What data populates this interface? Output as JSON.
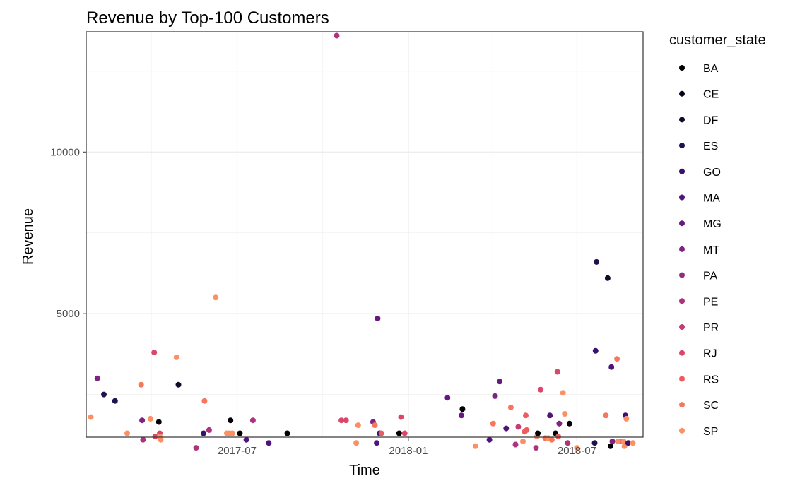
{
  "chart_data": {
    "type": "scatter",
    "title": "Revenue by Top-100 Customers",
    "xlabel": "Time",
    "ylabel": "Revenue",
    "x_ticks": [
      "2017-07",
      "2018-01",
      "2018-07"
    ],
    "y_ticks": [
      5000,
      10000
    ],
    "xlim": [
      "2017-01-20",
      "2018-09-10"
    ],
    "ylim": [
      1180,
      13720
    ],
    "grid": true,
    "legend": {
      "title": "customer_state",
      "placement": "right",
      "entries": [
        {
          "name": "BA",
          "color": "#000004"
        },
        {
          "name": "CE",
          "color": "#040418"
        },
        {
          "name": "DF",
          "color": "#100b2d"
        },
        {
          "name": "ES",
          "color": "#221150"
        },
        {
          "name": "GO",
          "color": "#38116e"
        },
        {
          "name": "MA",
          "color": "#50127b"
        },
        {
          "name": "MG",
          "color": "#661a80"
        },
        {
          "name": "MT",
          "color": "#7d2382"
        },
        {
          "name": "PA",
          "color": "#932b80"
        },
        {
          "name": "PE",
          "color": "#ad347c"
        },
        {
          "name": "PR",
          "color": "#c43c75"
        },
        {
          "name": "RJ",
          "color": "#db476a"
        },
        {
          "name": "RS",
          "color": "#ee5b5e"
        },
        {
          "name": "SC",
          "color": "#f8765c"
        },
        {
          "name": "SP",
          "color": "#fc9065"
        }
      ]
    },
    "points": [
      {
        "x": "2017-01-25",
        "y": 1800,
        "state": "SP"
      },
      {
        "x": "2017-02-01",
        "y": 3000,
        "state": "MT"
      },
      {
        "x": "2017-02-08",
        "y": 2500,
        "state": "ES"
      },
      {
        "x": "2017-02-20",
        "y": 2300,
        "state": "ES"
      },
      {
        "x": "2017-03-05",
        "y": 1300,
        "state": "SP"
      },
      {
        "x": "2017-03-20",
        "y": 2800,
        "state": "SC"
      },
      {
        "x": "2017-03-21",
        "y": 1700,
        "state": "MT"
      },
      {
        "x": "2017-03-22",
        "y": 1100,
        "state": "PE"
      },
      {
        "x": "2017-03-30",
        "y": 1750,
        "state": "SP"
      },
      {
        "x": "2017-04-03",
        "y": 3800,
        "state": "RJ"
      },
      {
        "x": "2017-04-04",
        "y": 1200,
        "state": "RJ"
      },
      {
        "x": "2017-04-08",
        "y": 1650,
        "state": "BA"
      },
      {
        "x": "2017-04-09",
        "y": 1300,
        "state": "RJ"
      },
      {
        "x": "2017-04-09",
        "y": 1200,
        "state": "SP"
      },
      {
        "x": "2017-04-10",
        "y": 1100,
        "state": "SP"
      },
      {
        "x": "2017-04-27",
        "y": 3650,
        "state": "SP"
      },
      {
        "x": "2017-04-29",
        "y": 2800,
        "state": "DF"
      },
      {
        "x": "2017-05-18",
        "y": 850,
        "state": "PE"
      },
      {
        "x": "2017-05-26",
        "y": 1300,
        "state": "GO"
      },
      {
        "x": "2017-05-27",
        "y": 2300,
        "state": "SC"
      },
      {
        "x": "2017-06-01",
        "y": 1400,
        "state": "PE"
      },
      {
        "x": "2017-06-08",
        "y": 5500,
        "state": "SP"
      },
      {
        "x": "2017-06-20",
        "y": 1300,
        "state": "SP"
      },
      {
        "x": "2017-06-23",
        "y": 1300,
        "state": "SP"
      },
      {
        "x": "2017-06-24",
        "y": 1700,
        "state": "BA"
      },
      {
        "x": "2017-06-26",
        "y": 1300,
        "state": "SP"
      },
      {
        "x": "2017-07-04",
        "y": 1300,
        "state": "BA"
      },
      {
        "x": "2017-07-11",
        "y": 1100,
        "state": "MA"
      },
      {
        "x": "2017-07-18",
        "y": 1700,
        "state": "PE"
      },
      {
        "x": "2017-08-04",
        "y": 1000,
        "state": "MA"
      },
      {
        "x": "2017-08-24",
        "y": 1300,
        "state": "BA"
      },
      {
        "x": "2017-10-16",
        "y": 13600,
        "state": "PE"
      },
      {
        "x": "2017-10-21",
        "y": 1700,
        "state": "RJ"
      },
      {
        "x": "2017-10-26",
        "y": 1700,
        "state": "RJ"
      },
      {
        "x": "2017-11-06",
        "y": 1000,
        "state": "SP"
      },
      {
        "x": "2017-11-08",
        "y": 1550,
        "state": "SP"
      },
      {
        "x": "2017-11-24",
        "y": 1650,
        "state": "MT"
      },
      {
        "x": "2017-11-26",
        "y": 1550,
        "state": "SC"
      },
      {
        "x": "2017-11-28",
        "y": 1000,
        "state": "MA"
      },
      {
        "x": "2017-11-29",
        "y": 4850,
        "state": "MG"
      },
      {
        "x": "2017-12-01",
        "y": 1300,
        "state": "GO"
      },
      {
        "x": "2017-12-03",
        "y": 1300,
        "state": "RS"
      },
      {
        "x": "2017-12-22",
        "y": 1300,
        "state": "BA"
      },
      {
        "x": "2017-12-24",
        "y": 1800,
        "state": "RJ"
      },
      {
        "x": "2017-12-28",
        "y": 1300,
        "state": "RJ"
      },
      {
        "x": "2018-02-12",
        "y": 2400,
        "state": "MG"
      },
      {
        "x": "2018-02-27",
        "y": 1850,
        "state": "MG"
      },
      {
        "x": "2018-02-28",
        "y": 2050,
        "state": "BA"
      },
      {
        "x": "2018-03-14",
        "y": 900,
        "state": "SP"
      },
      {
        "x": "2018-03-29",
        "y": 1100,
        "state": "MA"
      },
      {
        "x": "2018-04-02",
        "y": 1600,
        "state": "SC"
      },
      {
        "x": "2018-04-04",
        "y": 2450,
        "state": "MT"
      },
      {
        "x": "2018-04-09",
        "y": 2900,
        "state": "MG"
      },
      {
        "x": "2018-04-16",
        "y": 1450,
        "state": "MA"
      },
      {
        "x": "2018-04-21",
        "y": 2100,
        "state": "SC"
      },
      {
        "x": "2018-04-26",
        "y": 950,
        "state": "PE"
      },
      {
        "x": "2018-04-29",
        "y": 1500,
        "state": "PR"
      },
      {
        "x": "2018-05-04",
        "y": 1050,
        "state": "SP"
      },
      {
        "x": "2018-05-06",
        "y": 1350,
        "state": "RS"
      },
      {
        "x": "2018-05-07",
        "y": 1850,
        "state": "RS"
      },
      {
        "x": "2018-05-08",
        "y": 1400,
        "state": "RS"
      },
      {
        "x": "2018-05-18",
        "y": 850,
        "state": "PE"
      },
      {
        "x": "2018-05-19",
        "y": 1200,
        "state": "SP"
      },
      {
        "x": "2018-05-20",
        "y": 1300,
        "state": "BA"
      },
      {
        "x": "2018-05-23",
        "y": 2650,
        "state": "RJ"
      },
      {
        "x": "2018-05-28",
        "y": 1150,
        "state": "SC"
      },
      {
        "x": "2018-05-31",
        "y": 1150,
        "state": "SP"
      },
      {
        "x": "2018-06-02",
        "y": 1850,
        "state": "MA"
      },
      {
        "x": "2018-06-04",
        "y": 1100,
        "state": "SC"
      },
      {
        "x": "2018-06-08",
        "y": 1300,
        "state": "BA"
      },
      {
        "x": "2018-06-10",
        "y": 3200,
        "state": "RJ"
      },
      {
        "x": "2018-06-11",
        "y": 1200,
        "state": "RS"
      },
      {
        "x": "2018-06-12",
        "y": 1600,
        "state": "MT"
      },
      {
        "x": "2018-06-16",
        "y": 2550,
        "state": "SP"
      },
      {
        "x": "2018-06-18",
        "y": 1900,
        "state": "SP"
      },
      {
        "x": "2018-06-21",
        "y": 1000,
        "state": "PE"
      },
      {
        "x": "2018-06-23",
        "y": 1600,
        "state": "BA"
      },
      {
        "x": "2018-07-01",
        "y": 850,
        "state": "SP"
      },
      {
        "x": "2018-07-20",
        "y": 1000,
        "state": "ES"
      },
      {
        "x": "2018-07-21",
        "y": 3850,
        "state": "GO"
      },
      {
        "x": "2018-07-22",
        "y": 6600,
        "state": "ES"
      },
      {
        "x": "2018-08-01",
        "y": 1850,
        "state": "SC"
      },
      {
        "x": "2018-08-03",
        "y": 6100,
        "state": "DF"
      },
      {
        "x": "2018-08-06",
        "y": 900,
        "state": "BA"
      },
      {
        "x": "2018-08-07",
        "y": 3350,
        "state": "MA"
      },
      {
        "x": "2018-08-08",
        "y": 1050,
        "state": "MT"
      },
      {
        "x": "2018-08-13",
        "y": 3600,
        "state": "SC"
      },
      {
        "x": "2018-08-14",
        "y": 1050,
        "state": "SP"
      },
      {
        "x": "2018-08-16",
        "y": 1050,
        "state": "SP"
      },
      {
        "x": "2018-08-19",
        "y": 1050,
        "state": "RS"
      },
      {
        "x": "2018-08-20",
        "y": 1050,
        "state": "SP"
      },
      {
        "x": "2018-08-21",
        "y": 900,
        "state": "SP"
      },
      {
        "x": "2018-08-22",
        "y": 1850,
        "state": "GO"
      },
      {
        "x": "2018-08-23",
        "y": 1750,
        "state": "SP"
      },
      {
        "x": "2018-08-25",
        "y": 1000,
        "state": "GO"
      },
      {
        "x": "2018-08-30",
        "y": 1000,
        "state": "SP"
      }
    ]
  }
}
